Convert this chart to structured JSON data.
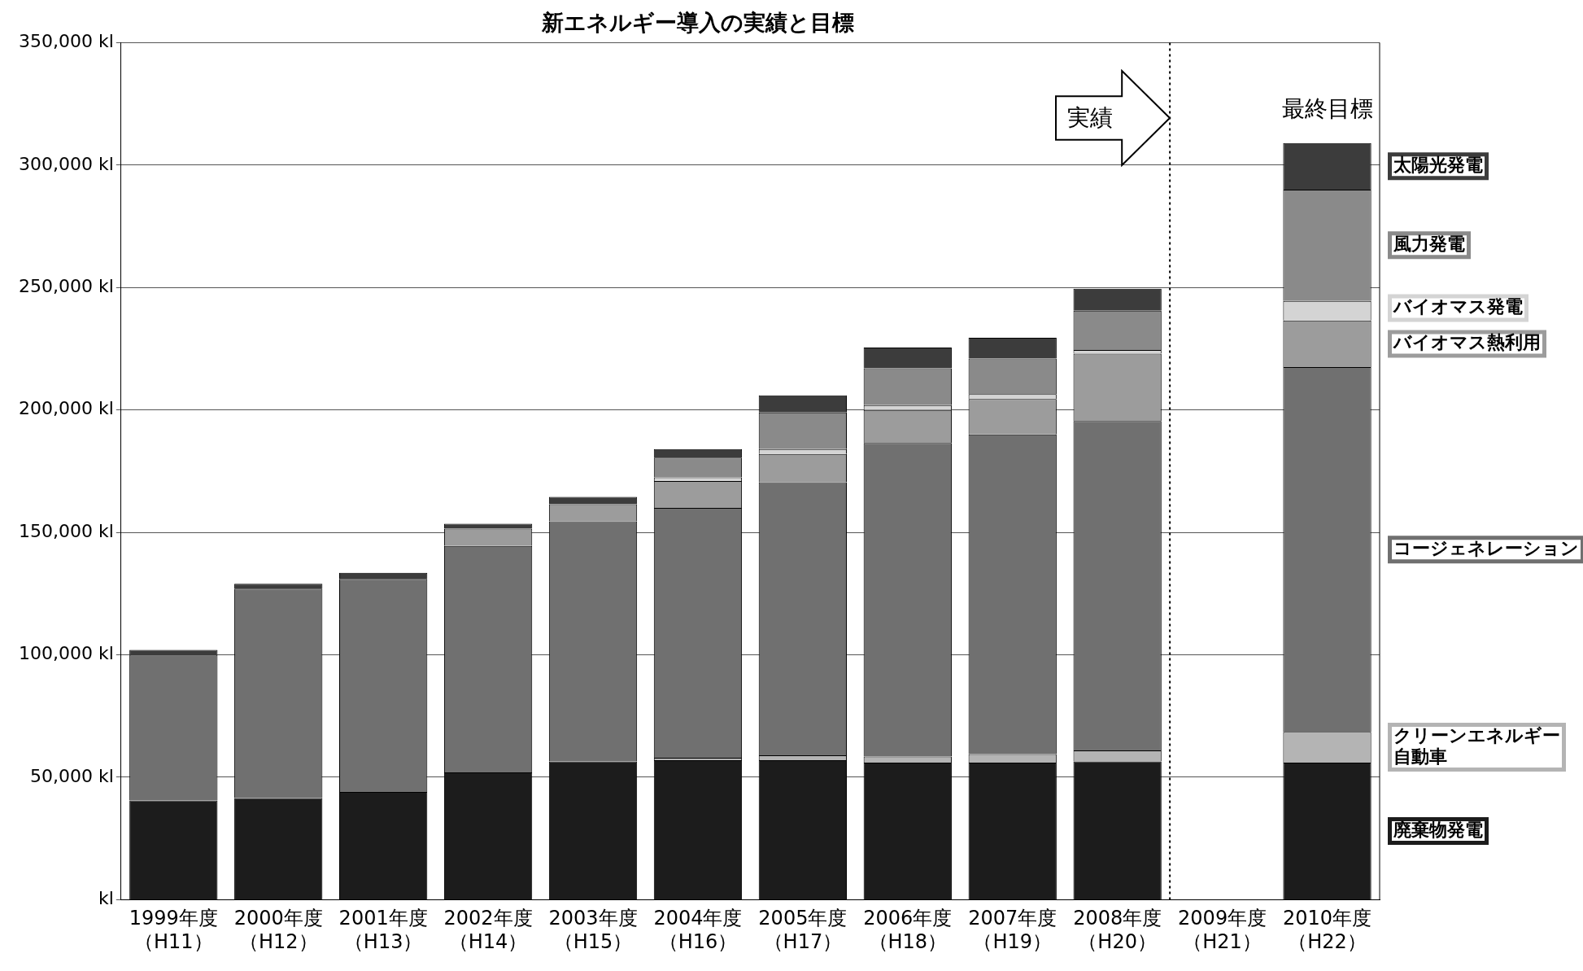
{
  "chart_data": {
    "type": "bar",
    "title": "新エネルギー導入の実績と目標",
    "categories": [
      "1999年度（H11）",
      "2000年度（H12）",
      "2001年度（H13）",
      "2002年度（H14）",
      "2003年度（H15）",
      "2004年度（H16）",
      "2005年度（H17）",
      "2006年度（H18）",
      "2007年度（H19）",
      "2008年度（H20）",
      "2009年度（H21）",
      "2010年度（H22）"
    ],
    "stacked": true,
    "series": [
      {
        "name": "廃棄物発電",
        "color": "#1c1c1c",
        "values": [
          40500,
          41500,
          44000,
          52000,
          56500,
          57000,
          57000,
          56000,
          56000,
          56500,
          null,
          56000
        ]
      },
      {
        "name": "クリーンエネルギー自動車",
        "color": "#b4b4b4",
        "values": [
          0,
          0,
          0,
          0,
          0,
          1000,
          2000,
          2500,
          3500,
          4500,
          null,
          12500
        ]
      },
      {
        "name": "コージェネレーション",
        "color": "#707070",
        "values": [
          59500,
          85500,
          87000,
          92500,
          98000,
          102000,
          111500,
          128000,
          130500,
          134500,
          null,
          149000
        ]
      },
      {
        "name": "バイオマス熱利用",
        "color": "#9c9c9c",
        "values": [
          0,
          0,
          0,
          7000,
          7000,
          11000,
          11500,
          13500,
          14500,
          27500,
          null,
          19000
        ]
      },
      {
        "name": "バイオマス発電",
        "color": "#d4d4d4",
        "values": [
          0,
          0,
          0,
          0,
          0,
          1500,
          2000,
          2000,
          2000,
          1500,
          null,
          8000
        ]
      },
      {
        "name": "風力発電",
        "color": "#8a8a8a",
        "values": [
          0,
          0,
          0,
          0,
          0,
          8000,
          15000,
          15000,
          14500,
          16000,
          null,
          45500
        ]
      },
      {
        "name": "太陽光発電",
        "color": "#3c3c3c",
        "values": [
          2000,
          2000,
          2500,
          2000,
          3000,
          3500,
          7000,
          8500,
          8500,
          9000,
          null,
          19000
        ]
      }
    ],
    "ylim": [
      0,
      350000
    ],
    "yticks": [
      {
        "value": 0,
        "label": "kl"
      },
      {
        "value": 50000,
        "label": "50,000 kl"
      },
      {
        "value": 100000,
        "label": "100,000 kl"
      },
      {
        "value": 150000,
        "label": "150,000 kl"
      },
      {
        "value": 200000,
        "label": "200,000 kl"
      },
      {
        "value": 250000,
        "label": "250,000 kl"
      },
      {
        "value": 300000,
        "label": "300,000 kl"
      },
      {
        "value": 350000,
        "label": "350,000 kl"
      }
    ],
    "grid": "y",
    "ref_lines": [
      {
        "axis": "x",
        "value": "2009年度（H21）",
        "label": "実績",
        "line_style": "dotted",
        "color": "#000000"
      }
    ],
    "legend": "right",
    "annotations": [
      "最終目標"
    ]
  }
}
